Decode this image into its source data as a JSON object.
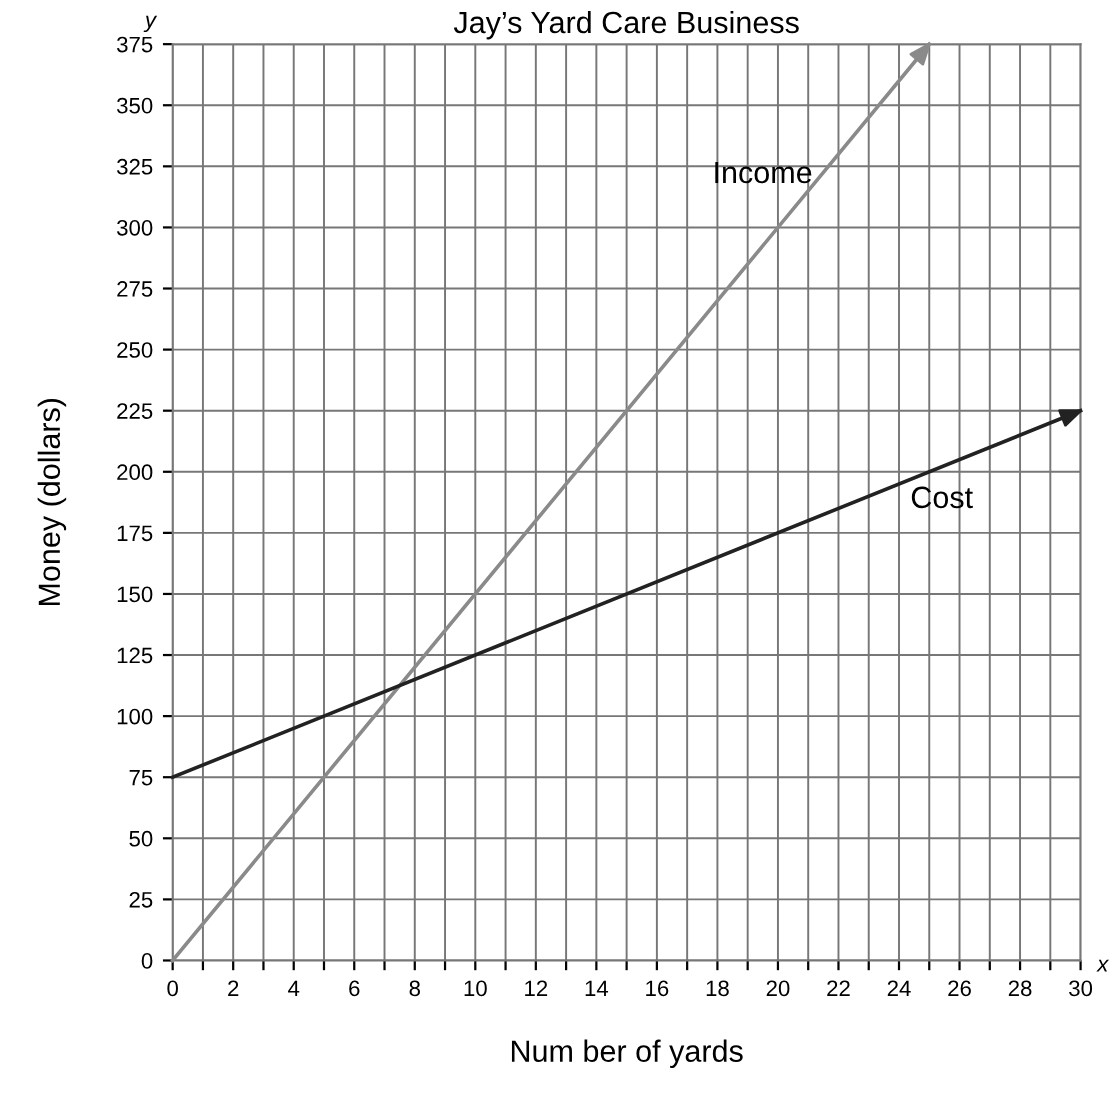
{
  "chart_data": {
    "type": "line",
    "title": "Jay’s Yard Care Business",
    "xlabel": "Num ber of yards",
    "ylabel": "Money (dollars)",
    "series": [
      {
        "name": "Income",
        "color": "#8a8a8a",
        "x": [
          0,
          25
        ],
        "values": [
          0,
          375
        ]
      },
      {
        "name": "Cost",
        "color": "#222222",
        "x": [
          0,
          30
        ],
        "values": [
          75,
          225
        ]
      }
    ],
    "xlim": [
      0,
      30
    ],
    "ylim": [
      0,
      375
    ],
    "xticks": [
      0,
      {
        "value": 1,
        "label": null
      },
      2,
      {
        "value": 3,
        "label": null
      },
      4,
      {
        "value": 5,
        "label": null
      },
      6,
      {
        "value": 7,
        "label": null
      },
      8,
      {
        "value": 9,
        "label": null
      },
      10,
      {
        "value": 11,
        "label": null
      },
      12,
      {
        "value": 13,
        "label": null
      },
      14,
      {
        "value": 15,
        "label": null
      },
      16,
      {
        "value": 17,
        "label": null
      },
      18,
      {
        "value": 19,
        "label": null
      },
      20,
      {
        "value": 21,
        "label": null
      },
      22,
      {
        "value": 23,
        "label": null
      },
      24,
      {
        "value": 25,
        "label": null
      },
      26,
      {
        "value": 27,
        "label": null
      },
      28,
      {
        "value": 29,
        "label": null
      },
      30
    ],
    "yticks": [
      0,
      25,
      50,
      75,
      100,
      125,
      150,
      175,
      200,
      225,
      250,
      275,
      300,
      325,
      350,
      375
    ],
    "annotations": [
      "y",
      "x"
    ],
    "grid": true,
    "legend": false,
    "marker": "none",
    "line_style": "solid"
  }
}
